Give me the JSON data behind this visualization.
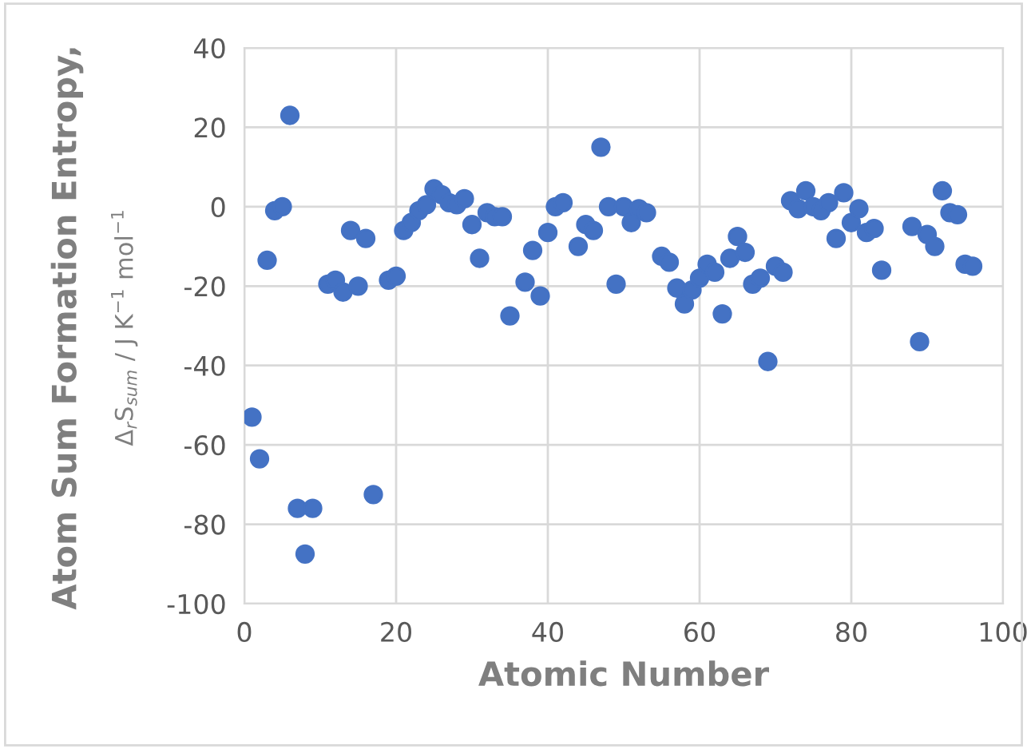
{
  "chart_data": {
    "type": "scatter",
    "xlabel": "Atomic Number",
    "ylabel": "Atom Sum Formation Entropy,\nΔ$_{r}$S$_{sum}$ / J K$^{−1}$ mol$^{−1}$",
    "x": [
      1,
      2,
      3,
      4,
      5,
      6,
      7,
      8,
      9,
      11,
      12,
      13,
      14,
      15,
      16,
      17,
      19,
      20,
      21,
      22,
      23,
      24,
      25,
      26,
      27,
      28,
      29,
      30,
      31,
      32,
      33,
      34,
      35,
      37,
      38,
      39,
      40,
      41,
      42,
      44,
      45,
      46,
      47,
      48,
      49,
      50,
      51,
      52,
      53,
      55,
      56,
      57,
      58,
      59,
      60,
      61,
      62,
      63,
      64,
      65,
      66,
      67,
      68,
      69,
      70,
      71,
      72,
      73,
      74,
      75,
      76,
      77,
      78,
      79,
      80,
      81,
      82,
      83,
      84,
      88,
      89,
      90,
      91,
      92,
      93,
      94,
      95,
      96
    ],
    "series": [
      {
        "color": "#4472c4",
        "values": [
          -53,
          -63.5,
          -13.5,
          -1,
          0,
          23,
          -76,
          -87.5,
          -76,
          -19.5,
          -18.5,
          -21.5,
          -6,
          -20,
          -8,
          -72.5,
          -18.5,
          -17.5,
          -6,
          -4,
          -1,
          0.5,
          4.5,
          3,
          1,
          0.5,
          2,
          -4.5,
          -13,
          -1.5,
          -2.5,
          -2.5,
          -27.5,
          -19,
          -11,
          -22.5,
          -6.5,
          0,
          1,
          -10,
          -4.5,
          -6,
          15,
          0,
          -19.5,
          0,
          -4,
          -0.5,
          -1.5,
          -12.5,
          -14,
          -20.5,
          -24.5,
          -21,
          -18,
          -14.5,
          -16.5,
          -27,
          -13,
          -7.5,
          -11.5,
          -19.5,
          -18,
          -39,
          -15,
          -16.5,
          1.5,
          -0.5,
          4,
          0,
          -1,
          1,
          -8,
          3.5,
          -4,
          -0.5,
          -6.5,
          -5.5,
          -16,
          -5,
          -34,
          -7,
          -10,
          4,
          -1.5,
          -2,
          -14.5,
          -15
        ]
      }
    ],
    "xlim": [
      0,
      100
    ],
    "xticks": [
      0,
      20,
      40,
      60,
      80,
      100
    ],
    "ylim": [
      -100,
      40
    ],
    "yticks": [
      -100,
      -80,
      -60,
      -40,
      -20,
      0,
      20,
      40
    ],
    "grid": true,
    "marker": "circle"
  }
}
